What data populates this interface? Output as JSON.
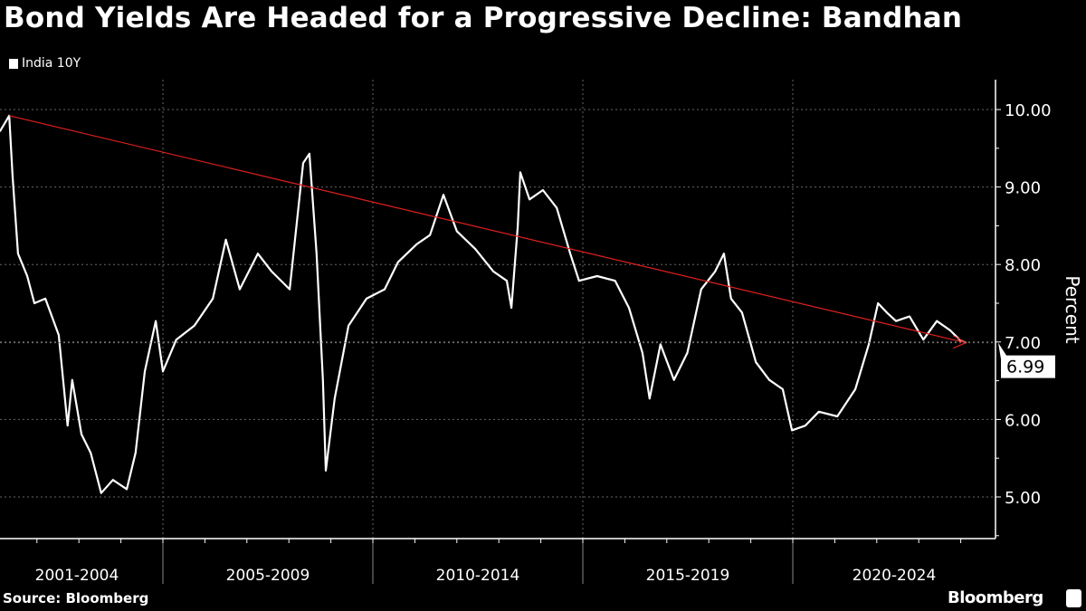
{
  "title": "Bond Yields Are Headed for a Progressive Decline: Bandhan",
  "source": "Source: Bloomberg",
  "brand": "Bloomberg",
  "chart_data": {
    "type": "line",
    "title": "Bond Yields Are Headed for a Progressive Decline: Bandhan",
    "ylabel": "Percent",
    "xlabel": "",
    "ylim": [
      4.5,
      10.4
    ],
    "xlim": [
      2001.12,
      2024.8
    ],
    "y_ticks": [
      "5.00",
      "6.00",
      "7.00",
      "8.00",
      "9.00",
      "10.00"
    ],
    "y_tick_values": [
      5,
      6,
      7,
      8,
      9,
      10
    ],
    "x_tick_labels": [
      "2001-2004",
      "2005-2009",
      "2010-2014",
      "2015-2019",
      "2020-2024"
    ],
    "x_period_bounds": [
      2005,
      2010,
      2015,
      2020
    ],
    "grid": true,
    "legend_position": "top-left",
    "last_value_label": "6.99",
    "colors": {
      "series": "#ffffff",
      "trend": "#e0201e",
      "background": "#000000"
    },
    "series": [
      {
        "name": "India 10Y",
        "x": [
          2001.12,
          2001.34,
          2001.42,
          2001.55,
          2001.77,
          2001.94,
          2002.2,
          2002.52,
          2002.73,
          2002.84,
          2003.06,
          2003.28,
          2003.53,
          2003.81,
          2004.14,
          2004.35,
          2004.57,
          2004.83,
          2005.0,
          2005.32,
          2005.75,
          2006.19,
          2006.5,
          2006.83,
          2007.26,
          2007.59,
          2008.02,
          2008.34,
          2008.49,
          2008.66,
          2008.81,
          2008.88,
          2009.09,
          2009.42,
          2009.85,
          2010.28,
          2010.6,
          2011.04,
          2011.36,
          2011.68,
          2012.0,
          2012.44,
          2012.87,
          2013.19,
          2013.3,
          2013.45,
          2013.51,
          2013.73,
          2014.05,
          2014.38,
          2014.7,
          2014.91,
          2015.34,
          2015.77,
          2016.1,
          2016.42,
          2016.59,
          2016.85,
          2017.17,
          2017.49,
          2017.82,
          2018.15,
          2018.36,
          2018.53,
          2018.79,
          2019.12,
          2019.44,
          2019.76,
          2019.98,
          2020.3,
          2020.62,
          2021.06,
          2021.49,
          2021.81,
          2022.03,
          2022.24,
          2022.46,
          2022.78,
          2023.11,
          2023.43,
          2023.75,
          2023.97,
          2024.12
        ],
        "y": [
          9.72,
          9.92,
          9.14,
          8.14,
          7.85,
          7.5,
          7.56,
          7.09,
          5.92,
          6.51,
          5.81,
          5.57,
          5.05,
          5.22,
          5.1,
          5.57,
          6.62,
          7.27,
          6.62,
          7.03,
          7.21,
          7.56,
          8.32,
          7.68,
          8.14,
          7.91,
          7.68,
          9.31,
          9.43,
          8.14,
          6.51,
          5.34,
          6.27,
          7.21,
          7.56,
          7.68,
          8.03,
          8.26,
          8.38,
          8.9,
          8.43,
          8.2,
          7.91,
          7.79,
          7.44,
          8.49,
          9.19,
          8.84,
          8.96,
          8.73,
          8.14,
          7.79,
          7.85,
          7.79,
          7.44,
          6.86,
          6.27,
          6.97,
          6.51,
          6.86,
          7.68,
          7.91,
          8.14,
          7.56,
          7.38,
          6.74,
          6.51,
          6.39,
          5.86,
          5.92,
          6.1,
          6.04,
          6.39,
          6.97,
          7.5,
          7.38,
          7.27,
          7.33,
          7.03,
          7.27,
          7.15,
          7.03,
          6.99
        ]
      }
    ],
    "trend_line": {
      "x": [
        2001.34,
        2024.12
      ],
      "y": [
        9.92,
        6.99
      ]
    }
  }
}
